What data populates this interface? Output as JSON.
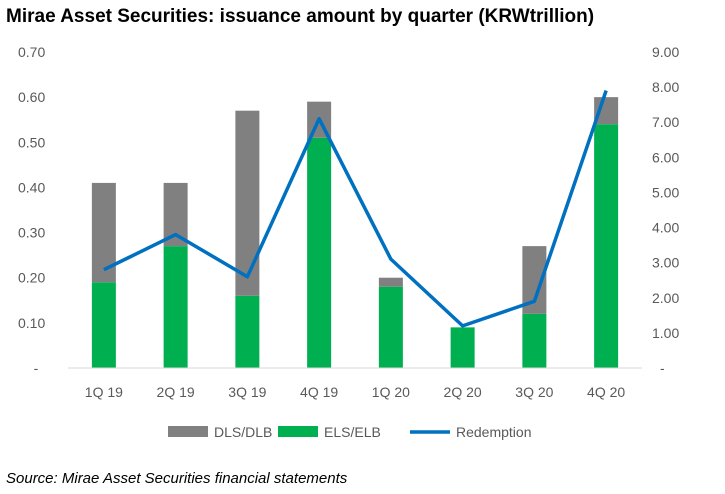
{
  "title": "Mirae Asset Securities: issuance amount by quarter (KRWtrillion)",
  "source": "Source: Mirae Asset Securities financial statements",
  "colors": {
    "dls": "#808080",
    "els": "#00b050",
    "redemption": "#0070c0",
    "axis": "#d9d9d9",
    "text": "#595959"
  },
  "chart_data": {
    "type": "bar",
    "categories": [
      "1Q 19",
      "2Q 19",
      "3Q 19",
      "4Q 19",
      "1Q 20",
      "2Q 20",
      "3Q 20",
      "4Q 20"
    ],
    "series": [
      {
        "name": "DLS/DLB",
        "type": "bar",
        "axis": "left",
        "stacked": true,
        "values": [
          0.22,
          0.14,
          0.41,
          0.08,
          0.02,
          0.0,
          0.15,
          0.06
        ]
      },
      {
        "name": "ELS/ELB",
        "type": "bar",
        "axis": "left",
        "stacked": true,
        "values": [
          0.19,
          0.27,
          0.16,
          0.51,
          0.18,
          0.09,
          0.12,
          0.54
        ]
      },
      {
        "name": "Redemption",
        "type": "line",
        "axis": "right",
        "values": [
          2.8,
          3.8,
          2.6,
          7.1,
          3.1,
          1.2,
          1.9,
          7.9
        ]
      }
    ],
    "ylim_left": [
      0,
      0.7
    ],
    "yticks_left": [
      "-",
      "0.10",
      "0.20",
      "0.30",
      "0.40",
      "0.50",
      "0.60",
      "0.70"
    ],
    "ylim_right": [
      0,
      9
    ],
    "yticks_right": [
      "-",
      "1.00",
      "2.00",
      "3.00",
      "4.00",
      "5.00",
      "6.00",
      "7.00",
      "8.00",
      "9.00"
    ],
    "legend": "bottom",
    "grid": false
  }
}
